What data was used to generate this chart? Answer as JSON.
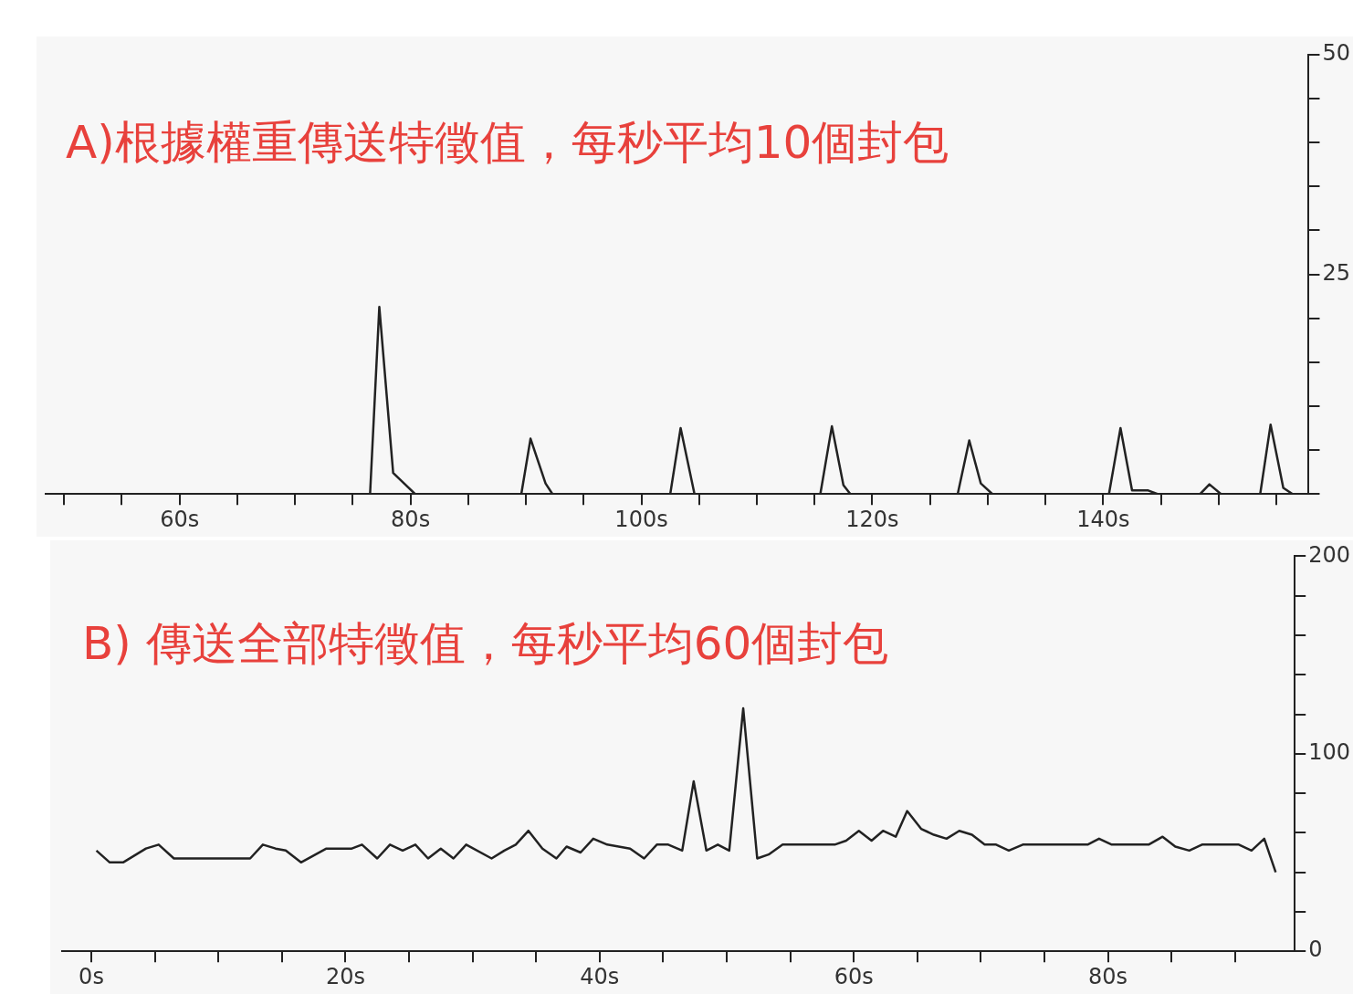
{
  "chart_data": [
    {
      "type": "line",
      "title": "A)根據權重傳送特徵值，每秒平均10個封包",
      "grid": false,
      "legend": false,
      "line_style": "solid",
      "x": [
        48.4,
        76.5,
        77.3,
        78.5,
        80.4,
        89.6,
        90.4,
        91.7,
        92.3,
        102.5,
        103.4,
        104.6,
        115.5,
        116.5,
        117.5,
        118.1,
        127.4,
        128.4,
        129.4,
        130.4,
        140.5,
        141.5,
        142.5,
        143.9,
        144.7,
        148.4,
        149.2,
        150.2,
        153.6,
        154.5,
        155.6,
        156.4
      ],
      "series": [
        {
          "color": "#222222",
          "values": [
            0,
            0,
            21.3,
            2.4,
            0,
            0,
            6.3,
            1.2,
            0,
            0,
            7.5,
            0,
            0,
            7.7,
            1,
            0,
            0,
            6.1,
            1.2,
            0,
            0,
            7.5,
            0.4,
            0.4,
            0,
            0,
            1.1,
            0,
            0,
            7.9,
            0.7,
            0
          ]
        }
      ],
      "xlim": [
        48.4,
        157.8
      ],
      "xticks": [
        {
          "value": 50,
          "label": null
        },
        {
          "value": 55,
          "label": null
        },
        {
          "value": 60,
          "label": "60s"
        },
        {
          "value": 65,
          "label": null
        },
        {
          "value": 70,
          "label": null
        },
        {
          "value": 75,
          "label": null
        },
        {
          "value": 80,
          "label": "80s"
        },
        {
          "value": 85,
          "label": null
        },
        {
          "value": 90,
          "label": null
        },
        {
          "value": 95,
          "label": null
        },
        {
          "value": 100,
          "label": "100s"
        },
        {
          "value": 105,
          "label": null
        },
        {
          "value": 110,
          "label": null
        },
        {
          "value": 115,
          "label": null
        },
        {
          "value": 120,
          "label": "120s"
        },
        {
          "value": 125,
          "label": null
        },
        {
          "value": 130,
          "label": null
        },
        {
          "value": 135,
          "label": null
        },
        {
          "value": 140,
          "label": "140s"
        },
        {
          "value": 145,
          "label": null
        },
        {
          "value": 150,
          "label": null
        },
        {
          "value": 155,
          "label": null
        }
      ],
      "ylim": [
        0,
        50
      ],
      "yticks": [
        {
          "value": 0,
          "label": null
        },
        {
          "value": 5,
          "label": null
        },
        {
          "value": 10,
          "label": null
        },
        {
          "value": 15,
          "label": null
        },
        {
          "value": 20,
          "label": null
        },
        25,
        {
          "value": 30,
          "label": null
        },
        {
          "value": 35,
          "label": null
        },
        {
          "value": 40,
          "label": null
        },
        {
          "value": 45,
          "label": null
        },
        50
      ]
    },
    {
      "type": "line",
      "title": "B) 傳送全部特徵值，每秒平均60個封包",
      "grid": false,
      "legend": false,
      "line_style": "solid",
      "x": [
        0.4,
        1.45,
        2.5,
        4.3,
        5.3,
        6.5,
        12.5,
        13.5,
        14.5,
        15.3,
        16.5,
        18.5,
        20.5,
        21.3,
        22.5,
        23.5,
        24.5,
        25.5,
        26.5,
        27.5,
        28.5,
        29.5,
        31.5,
        32.5,
        33.4,
        34.4,
        35.5,
        36.6,
        37.4,
        38.5,
        39.5,
        40.6,
        42.4,
        43.5,
        44.5,
        45.4,
        46.5,
        47.4,
        48.4,
        49.3,
        50.2,
        51.3,
        52.4,
        53.3,
        54.4,
        58.5,
        59.4,
        60.4,
        61.4,
        62.3,
        63.3,
        64.2,
        65.3,
        66.3,
        67.3,
        68.3,
        69.3,
        70.3,
        71.2,
        72.2,
        73.3,
        78.4,
        79.3,
        80.3,
        83.2,
        84.3,
        85.3,
        86.4,
        87.4,
        90.3,
        91.3,
        92.3,
        93.2
      ],
      "series": [
        {
          "color": "#222222",
          "values": [
            51,
            45,
            45,
            52,
            54,
            47,
            47,
            54,
            52,
            51,
            45,
            52,
            52,
            54,
            47,
            54,
            51,
            54,
            47,
            52,
            47,
            54,
            47,
            51,
            54,
            61,
            52,
            47,
            53,
            50,
            57,
            54,
            52,
            47,
            54,
            54,
            51,
            86,
            51,
            54,
            51,
            123,
            47,
            49,
            54,
            54,
            56,
            61,
            56,
            61,
            58,
            71,
            62,
            59,
            57,
            61,
            59,
            54,
            54,
            51,
            54,
            54,
            57,
            54,
            54,
            58,
            53,
            51,
            54,
            54,
            51,
            57,
            40
          ]
        }
      ],
      "xlim": [
        -2.3,
        94.7
      ],
      "xticks": [
        {
          "value": 0,
          "label": "0s"
        },
        {
          "value": 5,
          "label": null
        },
        {
          "value": 10,
          "label": null
        },
        {
          "value": 15,
          "label": null
        },
        {
          "value": 20,
          "label": "20s"
        },
        {
          "value": 25,
          "label": null
        },
        {
          "value": 30,
          "label": null
        },
        {
          "value": 35,
          "label": null
        },
        {
          "value": 40,
          "label": "40s"
        },
        {
          "value": 45,
          "label": null
        },
        {
          "value": 50,
          "label": null
        },
        {
          "value": 55,
          "label": null
        },
        {
          "value": 60,
          "label": "60s"
        },
        {
          "value": 65,
          "label": null
        },
        {
          "value": 70,
          "label": null
        },
        {
          "value": 75,
          "label": null
        },
        {
          "value": 80,
          "label": "80s"
        },
        {
          "value": 85,
          "label": null
        },
        {
          "value": 90,
          "label": null
        }
      ],
      "ylim": [
        0,
        200
      ],
      "yticks": [
        0,
        {
          "value": 20,
          "label": null
        },
        {
          "value": 40,
          "label": null
        },
        {
          "value": 60,
          "label": null
        },
        {
          "value": 80,
          "label": null
        },
        100,
        {
          "value": 120,
          "label": null
        },
        {
          "value": 140,
          "label": null
        },
        {
          "value": 160,
          "label": null
        },
        {
          "value": 180,
          "label": null
        },
        200
      ]
    }
  ]
}
